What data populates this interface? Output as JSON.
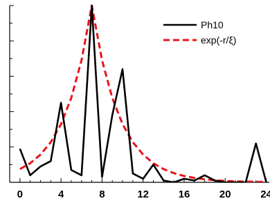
{
  "chart_data": {
    "type": "line",
    "title": "",
    "xlabel": "",
    "ylabel": "",
    "xlim": [
      -1,
      24.3
    ],
    "ylim": [
      0,
      1.0
    ],
    "x_ticks": [
      0,
      4,
      8,
      12,
      16,
      20,
      24
    ],
    "x_tick_labels": [
      "0",
      "4",
      "8",
      "12",
      "16",
      "20",
      "24"
    ],
    "y_tick_count": 10,
    "grid": false,
    "legend_position": "top-right",
    "series": [
      {
        "name": "Ph10",
        "style": "solid",
        "color": "#000000",
        "x": [
          0,
          1,
          2,
          3,
          4,
          5,
          6,
          7,
          8,
          9,
          10,
          11,
          12,
          13,
          14,
          15,
          16,
          17,
          18,
          19,
          20,
          21,
          22,
          23,
          24
        ],
        "y": [
          0.19,
          0.04,
          0.09,
          0.12,
          0.45,
          0.07,
          0.04,
          1.0,
          0.03,
          0.38,
          0.64,
          0.05,
          0.02,
          0.1,
          0.01,
          0.0,
          0.02,
          0.01,
          0.04,
          0.01,
          0.0,
          0.0,
          0.0,
          0.22,
          0.0
        ]
      },
      {
        "name": "exp(-r/ξ)",
        "style": "dashed",
        "color": "#e8141b",
        "function": "exp(-|r-7|/2.7)",
        "x": [
          0,
          1,
          2,
          3,
          4,
          5,
          6,
          7,
          8,
          9,
          10,
          11,
          12,
          13,
          14,
          15,
          16,
          17,
          18,
          19,
          20,
          21,
          22,
          23,
          24
        ],
        "y": [
          0.075,
          0.108,
          0.157,
          0.227,
          0.329,
          0.477,
          0.691,
          1.0,
          0.691,
          0.477,
          0.329,
          0.227,
          0.157,
          0.108,
          0.075,
          0.052,
          0.036,
          0.025,
          0.017,
          0.012,
          0.008,
          0.006,
          0.004,
          0.003,
          0.002
        ]
      }
    ]
  }
}
